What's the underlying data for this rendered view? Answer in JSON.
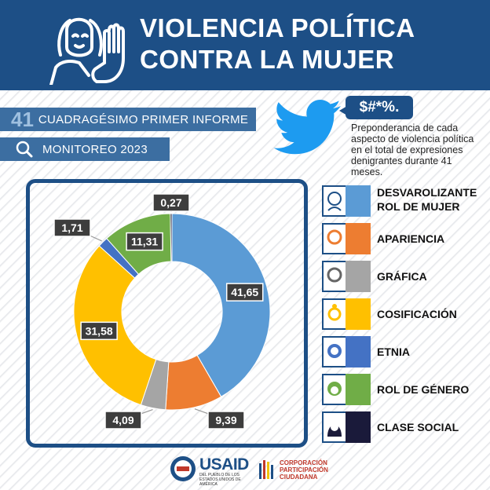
{
  "header": {
    "title_line1": "VIOLENCIA POLÍTICA",
    "title_line2": "CONTRA LA MUJER"
  },
  "report": {
    "number": "41",
    "label": "CUADRAGÉSIMO PRIMER INFORME"
  },
  "monitor": {
    "label": "MONITOREO 2023"
  },
  "tweet": {
    "bubble": "$#*%.",
    "description": "Preponderancia de cada aspecto de violencia política en el total de expresiones denigrantes durante 41 meses."
  },
  "chart_data": {
    "type": "pie",
    "variant": "donut",
    "title": "",
    "start": "top",
    "direction": "clockwise",
    "series": [
      {
        "name": "DESVAROLIZANTE ROL DE MUJER",
        "value": 41.65,
        "label": "41,65",
        "color": "#5b9bd5"
      },
      {
        "name": "APARIENCIA",
        "value": 9.39,
        "label": "9,39",
        "color": "#ed7d31"
      },
      {
        "name": "GRÁFICA",
        "value": 4.09,
        "label": "4,09",
        "color": "#a5a5a5"
      },
      {
        "name": "COSIFICACIÓN",
        "value": 31.58,
        "label": "31,58",
        "color": "#ffc000"
      },
      {
        "name": "ETNIA",
        "value": 1.71,
        "label": "1,71",
        "color": "#4472c4"
      },
      {
        "name": "ROL DE GÉNERO",
        "value": 11.31,
        "label": "11,31",
        "color": "#70ad47"
      },
      {
        "name": "CLASE SOCIAL",
        "value": 0.27,
        "label": "0,27",
        "color": "#1a1a3a"
      }
    ]
  },
  "legend": {
    "items": [
      {
        "label_line1": "DESVAROLIZANTE",
        "label_line2": "ROL DE MUJER",
        "icon": "woman-face-icon",
        "color": "#5b9bd5"
      },
      {
        "label_line1": "APARIENCIA",
        "label_line2": "",
        "icon": "woman-face-icon",
        "color": "#ed7d31"
      },
      {
        "label_line1": "GRÁFICA",
        "label_line2": "",
        "icon": "woman-face-icon",
        "color": "#a5a5a5"
      },
      {
        "label_line1": "COSIFICACIÓN",
        "label_line2": "",
        "icon": "woman-face-icon",
        "color": "#ffc000"
      },
      {
        "label_line1": "ETNIA",
        "label_line2": "",
        "icon": "woman-face-icon",
        "color": "#4472c4"
      },
      {
        "label_line1": "ROL DE GÉNERO",
        "label_line2": "",
        "icon": "woman-face-icon",
        "color": "#70ad47"
      },
      {
        "label_line1": "CLASE SOCIAL",
        "label_line2": "",
        "icon": "woman-face-icon",
        "color": "#1a1a3a"
      }
    ]
  },
  "footer": {
    "usaid": "USAID",
    "usaid_sub": "DEL PUEBLO DE LOS ESTADOS UNIDOS DE AMÉRICA",
    "cpc_line1": "CORPORACIÓN",
    "cpc_line2": "PARTICIPACIÓN",
    "cpc_line3": "CIUDADANA"
  },
  "colors": {
    "navy": "#1d4f86",
    "bar": "#3c6ea1"
  }
}
